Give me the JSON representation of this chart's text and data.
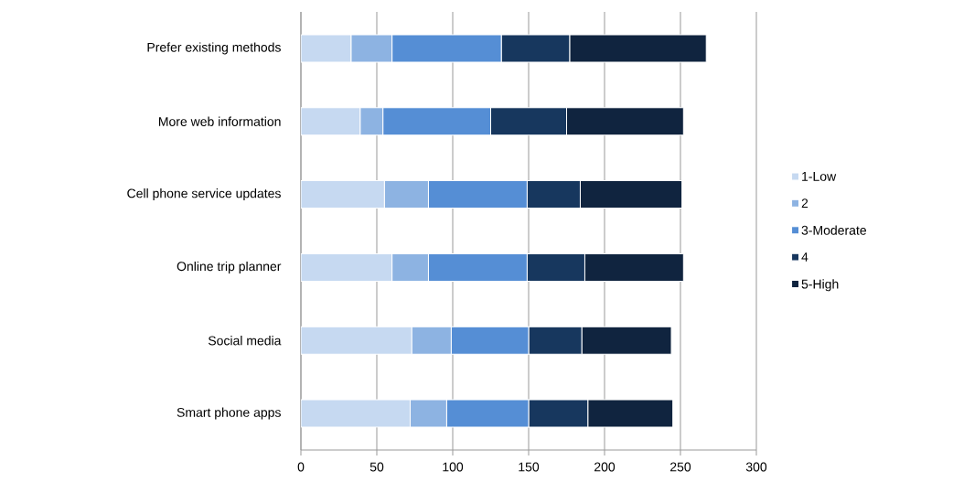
{
  "chart_data": {
    "type": "bar",
    "orientation": "horizontal",
    "stacked": true,
    "categories": [
      "Prefer existing methods",
      "More web information",
      "Cell phone service updates",
      "Online trip planner",
      "Social media",
      "Smart phone apps"
    ],
    "series": [
      {
        "name": "1-Low",
        "color": "#c6d9f1",
        "values": [
          33,
          39,
          55,
          60,
          73,
          72
        ]
      },
      {
        "name": "2",
        "color": "#8db3e2",
        "values": [
          27,
          15,
          29,
          24,
          26,
          24
        ]
      },
      {
        "name": "3-Moderate",
        "color": "#558ed5",
        "values": [
          72,
          71,
          65,
          65,
          51,
          54
        ]
      },
      {
        "name": "4",
        "color": "#17375e",
        "values": [
          45,
          50,
          35,
          38,
          35,
          39
        ]
      },
      {
        "name": "5-High",
        "color": "#10243f",
        "values": [
          90,
          77,
          67,
          65,
          59,
          56
        ]
      }
    ],
    "xlim": [
      0,
      300
    ],
    "xticks": [
      0,
      50,
      100,
      150,
      200,
      250,
      300
    ],
    "grid": "x",
    "legend": "right"
  }
}
